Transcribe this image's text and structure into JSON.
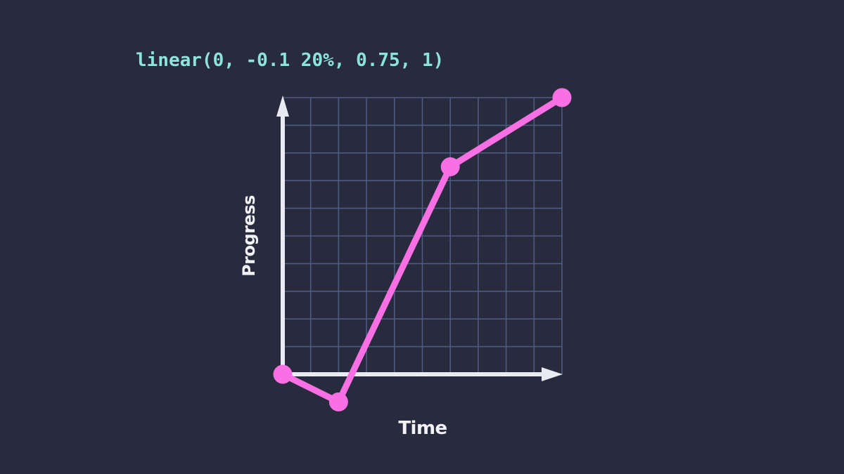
{
  "chart_data": {
    "type": "line",
    "title": "linear(0, -0.1 20%, 0.75, 1)",
    "xlabel": "Time",
    "ylabel": "Progress",
    "points": [
      {
        "time": 0,
        "progress": 0
      },
      {
        "time": 0.2,
        "progress": -0.1
      },
      {
        "time": 0.6,
        "progress": 0.75
      },
      {
        "time": 1,
        "progress": 1
      }
    ],
    "xlim": [
      0,
      1
    ],
    "ylim": [
      0,
      1
    ],
    "grid": {
      "visible": true,
      "cols": 10,
      "rows": 10
    },
    "legend": "none",
    "axes": {
      "x_arrow": "right",
      "y_arrow": "up"
    },
    "colors": {
      "background": "#272b3d",
      "grid_line": "#4e5a80",
      "axis": "#e9eaf2",
      "curve": "#f96fe4",
      "code_text": "#8de4df",
      "label_text": "#f1f1f6"
    }
  }
}
